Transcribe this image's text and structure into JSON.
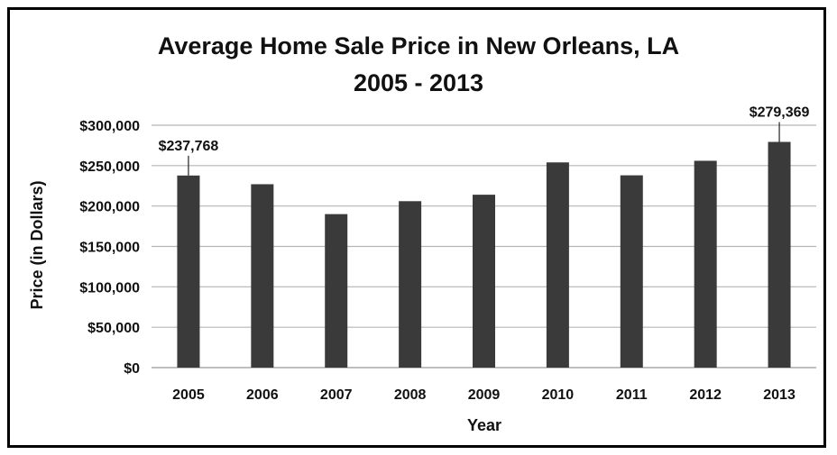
{
  "chart_data": {
    "type": "bar",
    "title": "Average Home Sale Price in New Orleans, LA",
    "subtitle": "2005 - 2013",
    "xlabel": "Year",
    "ylabel": "Price (in Dollars)",
    "categories": [
      "2005",
      "2006",
      "2007",
      "2008",
      "2009",
      "2010",
      "2011",
      "2012",
      "2013"
    ],
    "values": [
      237768,
      227000,
      190000,
      206000,
      214000,
      254000,
      238000,
      256000,
      279369
    ],
    "ylim": [
      0,
      300000
    ],
    "yticks": [
      0,
      50000,
      100000,
      150000,
      200000,
      250000,
      300000
    ],
    "ytick_labels": [
      "$0",
      "$50,000",
      "$100,000",
      "$150,000",
      "$200,000",
      "$250,000",
      "$300,000"
    ],
    "data_labels": [
      {
        "category": "2005",
        "text": "$237,768"
      },
      {
        "category": "2013",
        "text": "$279,369"
      }
    ],
    "grid": true,
    "legend": "none",
    "bar_color": "#3a3a3a"
  }
}
